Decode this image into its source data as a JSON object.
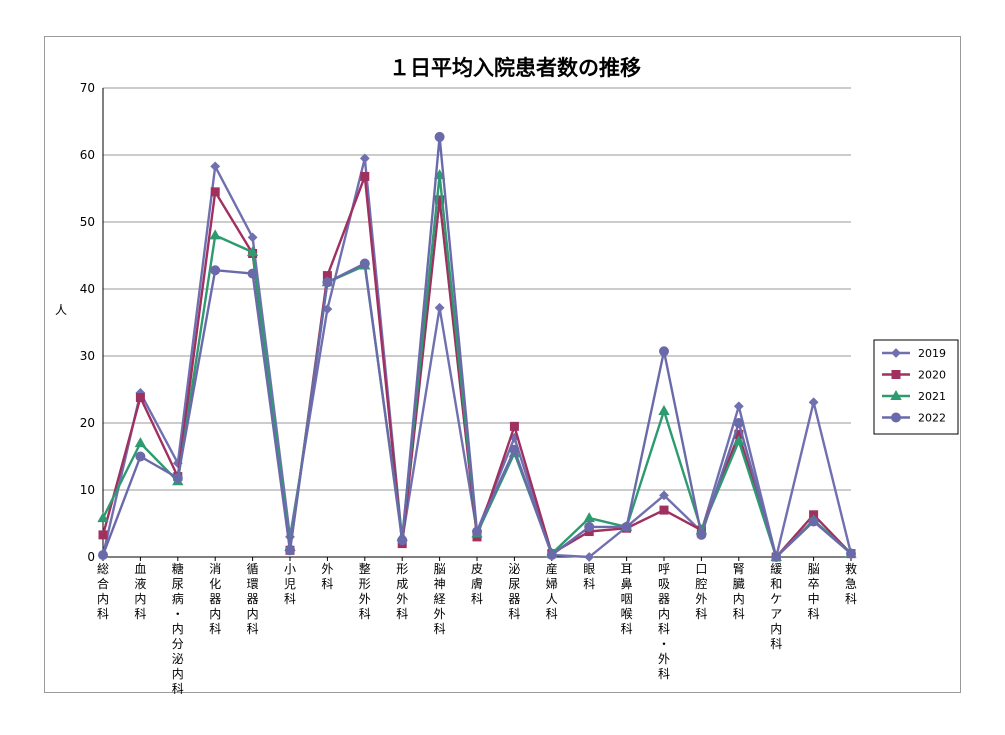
{
  "chart_data": {
    "type": "line",
    "title": "１日平均入院患者数の推移",
    "ylabel": "人",
    "xlabel": "",
    "ylim": [
      0,
      70
    ],
    "yticks": [
      0,
      10,
      20,
      30,
      40,
      50,
      60,
      70
    ],
    "grid": true,
    "legend_position": "right",
    "categories": [
      "総合内科",
      "血液内科",
      "糖尿病・内分泌内科",
      "消化器内科",
      "循環器内科",
      "小児科",
      "外科",
      "整形外科",
      "形成外科",
      "脳神経外科",
      "皮膚科",
      "泌尿器科",
      "産婦人科",
      "眼科",
      "耳鼻咽喉科",
      "呼吸器内科・外科",
      "口腔外科",
      "腎臓内科",
      "緩和ケア内科",
      "脳卒中科",
      "救急科"
    ],
    "series": [
      {
        "name": "2019",
        "color": "#7070b0",
        "marker": "diamond",
        "values": [
          0.3,
          24.5,
          14.0,
          58.3,
          47.7,
          3.0,
          37.0,
          59.5,
          2.5,
          37.2,
          3.8,
          17.8,
          0.3,
          0.0,
          4.5,
          9.2,
          3.8,
          22.5,
          0.0,
          23.1,
          0.5
        ]
      },
      {
        "name": "2020",
        "color": "#a0305f",
        "marker": "square",
        "values": [
          3.3,
          23.8,
          12.0,
          54.5,
          45.3,
          1.0,
          42.0,
          56.8,
          2.0,
          53.3,
          3.0,
          19.5,
          0.5,
          3.8,
          4.3,
          7.0,
          4.0,
          18.3,
          0.0,
          6.3,
          0.5
        ]
      },
      {
        "name": "2021",
        "color": "#2e9a70",
        "marker": "triangle",
        "values": [
          5.8,
          17.0,
          11.3,
          48.0,
          45.5,
          1.5,
          41.0,
          43.5,
          3.0,
          57.0,
          3.5,
          15.5,
          0.5,
          5.8,
          4.5,
          21.8,
          4.0,
          17.3,
          0.0,
          5.5,
          0.5
        ]
      },
      {
        "name": "2022",
        "color": "#6a6aaa",
        "marker": "circle",
        "values": [
          0.3,
          15.0,
          11.8,
          42.8,
          42.3,
          1.0,
          41.0,
          43.8,
          2.5,
          62.7,
          3.8,
          16.0,
          0.3,
          4.5,
          4.5,
          30.7,
          3.3,
          20.0,
          0.0,
          5.3,
          0.5
        ]
      }
    ]
  }
}
